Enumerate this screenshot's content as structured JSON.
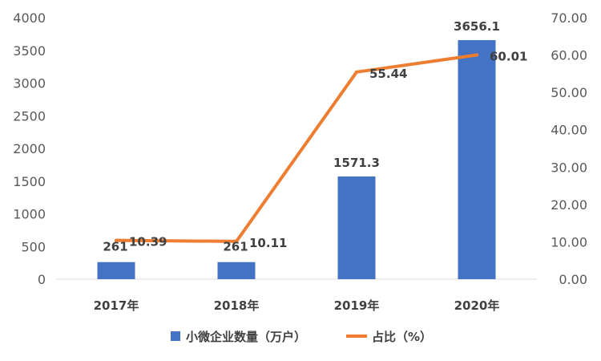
{
  "chart_data": {
    "type": "bar",
    "categories": [
      "2017年",
      "2018年",
      "2019年",
      "2020年"
    ],
    "series": [
      {
        "name": "小微企业数量（万户）",
        "type": "bar",
        "axis": "left",
        "color": "#4472C4",
        "values": [
          261,
          261,
          1571.3,
          3656.1
        ],
        "labels": [
          "261",
          "261",
          "1571.3",
          "3656.1"
        ]
      },
      {
        "name": "占比（%）",
        "type": "line",
        "axis": "right",
        "color": "#ED7D31",
        "values": [
          10.39,
          10.11,
          55.44,
          60.01
        ],
        "labels": [
          "10.39",
          "10.11",
          "55.44",
          "60.01"
        ]
      }
    ],
    "left_axis": {
      "ylim": [
        0,
        4000
      ],
      "ticks": [
        "0",
        "500",
        "1000",
        "1500",
        "2000",
        "2500",
        "3000",
        "3500",
        "4000"
      ]
    },
    "right_axis": {
      "ylim": [
        0,
        70
      ],
      "ticks": [
        "0.00",
        "10.00",
        "20.00",
        "30.00",
        "40.00",
        "50.00",
        "60.00",
        "70.00"
      ]
    },
    "grid": false,
    "legend_position": "bottom"
  }
}
